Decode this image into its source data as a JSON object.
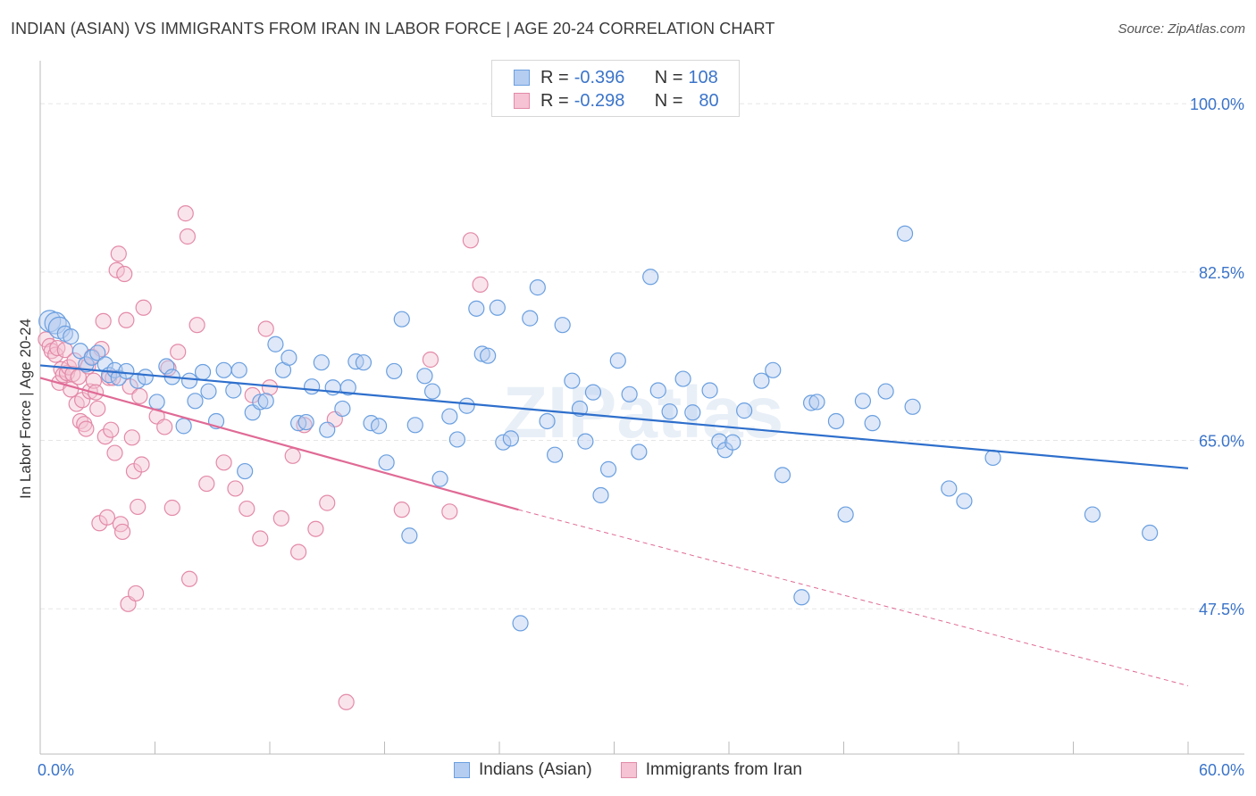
{
  "title": "INDIAN (ASIAN) VS IMMIGRANTS FROM IRAN IN LABOR FORCE | AGE 20-24 CORRELATION CHART",
  "source": "Source: ZipAtlas.com",
  "legend": {
    "r_label": "R =",
    "n_label": "N =",
    "rows": [
      {
        "r": "-0.396",
        "n": "108"
      },
      {
        "r": "-0.298",
        "n": "80"
      }
    ]
  },
  "watermark": "ZIPatlas",
  "colors": {
    "blue": "#6a9fe0",
    "blue_fill": "#b5cdf0",
    "blue_line": "#2e6fcc",
    "pink": "#e38aa8",
    "pink_fill": "#f5c3d3",
    "pink_line": "#e06a95",
    "axis_text": "#3b74c9",
    "grid": "#e6e6e6"
  },
  "chart_data": {
    "type": "scatter",
    "title": "INDIAN (ASIAN) VS IMMIGRANTS FROM IRAN IN LABOR FORCE | AGE 20-24 CORRELATION CHART",
    "xlabel": "",
    "ylabel": "In Labor Force | Age 20-24",
    "xlim": [
      0,
      60
    ],
    "ylim": [
      32.4,
      104.1
    ],
    "x_tick_labels": [
      "0.0%",
      "60.0%"
    ],
    "y_ticks": [
      47.5,
      65.0,
      82.5,
      100.0
    ],
    "y_tick_labels": [
      "47.5%",
      "65.0%",
      "82.5%",
      "100.0%"
    ],
    "grid": true,
    "legend_position": "top-center",
    "series": [
      {
        "name": "Indians (Asian)",
        "r": -0.396,
        "n": 108,
        "trend": {
          "x": [
            0,
            60
          ],
          "y": [
            72.8,
            62.1
          ]
        },
        "points": [
          [
            0.5,
            77.4
          ],
          [
            0.8,
            77.2
          ],
          [
            1.0,
            76.7
          ],
          [
            1.3,
            76.1
          ],
          [
            1.6,
            75.8
          ],
          [
            2.1,
            74.3
          ],
          [
            2.4,
            72.9
          ],
          [
            2.7,
            73.6
          ],
          [
            3.0,
            74.1
          ],
          [
            3.4,
            72.9
          ],
          [
            3.6,
            71.8
          ],
          [
            3.9,
            72.3
          ],
          [
            4.1,
            71.5
          ],
          [
            4.5,
            72.2
          ],
          [
            5.1,
            71.2
          ],
          [
            5.5,
            71.6
          ],
          [
            6.1,
            69.0
          ],
          [
            6.6,
            72.7
          ],
          [
            6.9,
            71.6
          ],
          [
            7.5,
            66.5
          ],
          [
            7.8,
            71.2
          ],
          [
            8.1,
            69.1
          ],
          [
            8.5,
            72.1
          ],
          [
            8.8,
            70.1
          ],
          [
            9.2,
            67.0
          ],
          [
            9.6,
            72.3
          ],
          [
            10.1,
            70.2
          ],
          [
            10.4,
            72.3
          ],
          [
            10.7,
            61.8
          ],
          [
            11.1,
            67.9
          ],
          [
            11.5,
            69.0
          ],
          [
            11.8,
            69.1
          ],
          [
            12.3,
            75.0
          ],
          [
            12.7,
            72.3
          ],
          [
            13.0,
            73.6
          ],
          [
            13.5,
            66.8
          ],
          [
            13.9,
            66.9
          ],
          [
            14.2,
            70.6
          ],
          [
            14.7,
            73.1
          ],
          [
            15.0,
            66.1
          ],
          [
            15.3,
            70.5
          ],
          [
            15.8,
            68.3
          ],
          [
            16.1,
            70.5
          ],
          [
            16.5,
            73.2
          ],
          [
            16.9,
            73.1
          ],
          [
            17.3,
            66.8
          ],
          [
            17.7,
            66.5
          ],
          [
            18.1,
            62.7
          ],
          [
            18.5,
            72.2
          ],
          [
            18.9,
            77.6
          ],
          [
            19.3,
            55.1
          ],
          [
            19.6,
            66.6
          ],
          [
            20.1,
            71.7
          ],
          [
            20.5,
            70.1
          ],
          [
            20.9,
            61.0
          ],
          [
            21.4,
            67.5
          ],
          [
            21.8,
            65.1
          ],
          [
            22.3,
            68.6
          ],
          [
            22.8,
            78.7
          ],
          [
            23.1,
            74.0
          ],
          [
            23.4,
            73.8
          ],
          [
            23.9,
            78.8
          ],
          [
            24.2,
            64.8
          ],
          [
            24.6,
            65.2
          ],
          [
            25.1,
            46.0
          ],
          [
            25.6,
            77.7
          ],
          [
            26.0,
            80.9
          ],
          [
            26.5,
            67.0
          ],
          [
            26.9,
            63.5
          ],
          [
            27.3,
            77.0
          ],
          [
            27.8,
            71.2
          ],
          [
            28.2,
            68.3
          ],
          [
            28.5,
            64.9
          ],
          [
            28.9,
            70.0
          ],
          [
            29.3,
            59.3
          ],
          [
            29.7,
            62.0
          ],
          [
            30.2,
            73.3
          ],
          [
            30.8,
            69.8
          ],
          [
            31.3,
            63.8
          ],
          [
            31.9,
            82.0
          ],
          [
            32.3,
            70.2
          ],
          [
            32.9,
            68.0
          ],
          [
            33.6,
            71.4
          ],
          [
            34.1,
            67.9
          ],
          [
            35.0,
            70.2
          ],
          [
            35.5,
            64.9
          ],
          [
            35.8,
            64.0
          ],
          [
            36.2,
            64.8
          ],
          [
            36.8,
            68.1
          ],
          [
            37.7,
            71.2
          ],
          [
            38.3,
            72.3
          ],
          [
            38.8,
            61.4
          ],
          [
            39.8,
            48.7
          ],
          [
            40.3,
            68.9
          ],
          [
            40.6,
            69.0
          ],
          [
            41.6,
            67.0
          ],
          [
            42.1,
            57.3
          ],
          [
            43.0,
            69.1
          ],
          [
            43.5,
            66.8
          ],
          [
            44.2,
            70.1
          ],
          [
            45.2,
            86.5
          ],
          [
            45.6,
            68.5
          ],
          [
            47.5,
            60.0
          ],
          [
            48.3,
            58.7
          ],
          [
            49.8,
            63.2
          ],
          [
            55.0,
            57.3
          ],
          [
            58.0,
            55.4
          ]
        ]
      },
      {
        "name": "Immigrants from Iran",
        "r": -0.298,
        "n": 80,
        "trend": {
          "x": [
            0,
            25
          ],
          "y": [
            71.5,
            57.8
          ]
        },
        "trend_dashed": {
          "x": [
            25,
            60
          ],
          "y": [
            57.8,
            39.5
          ]
        },
        "points": [
          [
            0.3,
            75.5
          ],
          [
            0.5,
            74.8
          ],
          [
            0.6,
            74.3
          ],
          [
            0.8,
            73.9
          ],
          [
            0.9,
            74.6
          ],
          [
            1.0,
            71.0
          ],
          [
            1.1,
            72.4
          ],
          [
            1.2,
            71.8
          ],
          [
            1.3,
            74.4
          ],
          [
            1.4,
            72.0
          ],
          [
            1.5,
            72.6
          ],
          [
            1.6,
            70.3
          ],
          [
            1.7,
            71.9
          ],
          [
            1.8,
            73.3
          ],
          [
            1.9,
            68.8
          ],
          [
            2.0,
            71.6
          ],
          [
            2.1,
            67.0
          ],
          [
            2.2,
            69.2
          ],
          [
            2.3,
            66.7
          ],
          [
            2.4,
            66.2
          ],
          [
            2.5,
            72.7
          ],
          [
            2.6,
            70.1
          ],
          [
            2.7,
            73.7
          ],
          [
            2.8,
            71.2
          ],
          [
            2.9,
            70.0
          ],
          [
            3.0,
            68.3
          ],
          [
            3.1,
            56.4
          ],
          [
            3.2,
            74.5
          ],
          [
            3.3,
            77.4
          ],
          [
            3.4,
            65.4
          ],
          [
            3.5,
            57.0
          ],
          [
            3.6,
            71.5
          ],
          [
            3.7,
            66.1
          ],
          [
            3.8,
            71.5
          ],
          [
            3.9,
            63.7
          ],
          [
            4.0,
            82.7
          ],
          [
            4.1,
            84.4
          ],
          [
            4.2,
            56.3
          ],
          [
            4.3,
            55.5
          ],
          [
            4.4,
            82.3
          ],
          [
            4.5,
            77.5
          ],
          [
            4.6,
            48.0
          ],
          [
            4.7,
            70.6
          ],
          [
            4.8,
            65.3
          ],
          [
            4.9,
            61.8
          ],
          [
            5.0,
            49.1
          ],
          [
            5.1,
            58.1
          ],
          [
            5.2,
            69.6
          ],
          [
            5.3,
            62.5
          ],
          [
            5.4,
            78.8
          ],
          [
            6.1,
            67.5
          ],
          [
            6.5,
            66.4
          ],
          [
            6.7,
            72.5
          ],
          [
            6.9,
            58.0
          ],
          [
            7.2,
            74.2
          ],
          [
            7.6,
            88.6
          ],
          [
            7.7,
            86.2
          ],
          [
            7.8,
            50.6
          ],
          [
            8.2,
            77.0
          ],
          [
            8.7,
            60.5
          ],
          [
            9.6,
            62.7
          ],
          [
            10.2,
            60.0
          ],
          [
            10.8,
            57.9
          ],
          [
            11.1,
            69.7
          ],
          [
            11.5,
            54.8
          ],
          [
            11.8,
            76.6
          ],
          [
            12.0,
            70.5
          ],
          [
            12.6,
            56.9
          ],
          [
            13.2,
            63.4
          ],
          [
            13.5,
            53.4
          ],
          [
            13.8,
            66.6
          ],
          [
            14.4,
            55.8
          ],
          [
            15.0,
            58.5
          ],
          [
            15.4,
            67.2
          ],
          [
            16.0,
            37.8
          ],
          [
            18.9,
            57.8
          ],
          [
            20.4,
            73.4
          ],
          [
            21.4,
            57.6
          ],
          [
            22.5,
            85.8
          ],
          [
            23.0,
            81.2
          ]
        ]
      }
    ]
  },
  "bottom_legend": [
    "Indians (Asian)",
    "Immigrants from Iran"
  ]
}
